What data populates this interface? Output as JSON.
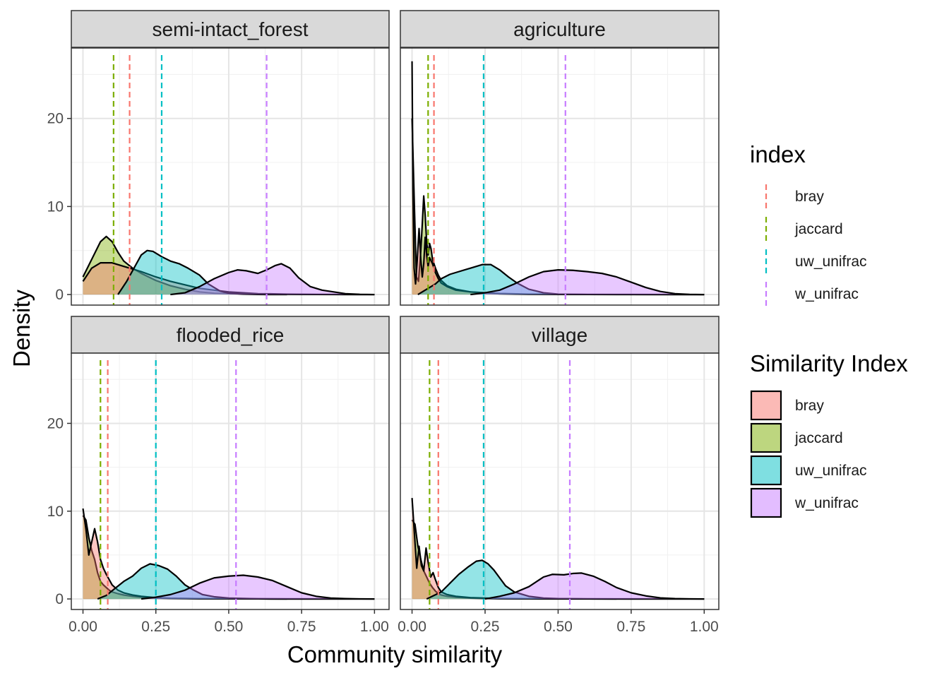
{
  "chart_data": {
    "type": "area",
    "xlabel": "Community similarity",
    "ylabel": "Density",
    "xlim": [
      -0.04,
      1.05
    ],
    "ylim": [
      -1.2,
      28
    ],
    "x_ticks": [
      0,
      0.25,
      0.5,
      0.75,
      1.0
    ],
    "x_tick_labels": [
      "0.00",
      "0.25",
      "0.50",
      "0.75",
      "1.00"
    ],
    "y_ticks": [
      0,
      10,
      20
    ],
    "y_tick_labels": [
      "0",
      "10",
      "20"
    ],
    "grid": true,
    "facet_layout": "2x2",
    "colors": {
      "bray": "#F8766D",
      "jaccard": "#7CAE00",
      "uw_unifrac": "#00BFC4",
      "w_unifrac": "#C77CFF"
    },
    "legends": [
      {
        "title": "index",
        "kind": "dashed-line",
        "placement": "right",
        "entries": [
          "bray",
          "jaccard",
          "uw_unifrac",
          "w_unifrac"
        ]
      },
      {
        "title": "Similarity Index",
        "kind": "filled-box",
        "placement": "right",
        "entries": [
          "bray",
          "jaccard",
          "uw_unifrac",
          "w_unifrac"
        ]
      }
    ],
    "panels": [
      {
        "title": "semi-intact_forest",
        "means": {
          "bray": 0.16,
          "jaccard": 0.105,
          "uw_unifrac": 0.27,
          "w_unifrac": 0.63
        },
        "series": [
          {
            "name": "jaccard",
            "x": [
              0,
              0.03,
              0.06,
              0.08,
              0.1,
              0.12,
              0.14,
              0.17,
              0.2,
              0.25,
              0.3,
              0.35,
              0.4,
              0.45,
              0.5,
              0.6,
              0.7,
              0.8,
              0.9,
              1.0
            ],
            "y": [
              2.0,
              4.0,
              6.0,
              6.6,
              6.0,
              4.8,
              3.8,
              3.0,
              2.4,
              1.6,
              1.0,
              0.6,
              0.3,
              0.15,
              0.1,
              0.05,
              0.02,
              0.01,
              0,
              0
            ]
          },
          {
            "name": "bray",
            "x": [
              0,
              0.03,
              0.06,
              0.1,
              0.14,
              0.2,
              0.25,
              0.3,
              0.35,
              0.4,
              0.45,
              0.5,
              0.55,
              0.6,
              0.7,
              0.8,
              1.0
            ],
            "y": [
              1.5,
              3.0,
              3.6,
              3.6,
              3.2,
              2.6,
              2.0,
              1.5,
              1.1,
              0.7,
              0.5,
              0.3,
              0.2,
              0.1,
              0.05,
              0.02,
              0
            ]
          },
          {
            "name": "uw_unifrac",
            "x": [
              0.12,
              0.15,
              0.18,
              0.2,
              0.22,
              0.24,
              0.27,
              0.3,
              0.33,
              0.36,
              0.4,
              0.43,
              0.47,
              0.5,
              0.55,
              0.6,
              0.7
            ],
            "y": [
              0,
              1.5,
              3.3,
              4.5,
              5.0,
              4.9,
              4.3,
              3.8,
              3.5,
              3.0,
              2.2,
              1.2,
              0.4,
              0.15,
              0.05,
              0.01,
              0
            ]
          },
          {
            "name": "w_unifrac",
            "x": [
              0.3,
              0.35,
              0.4,
              0.45,
              0.5,
              0.53,
              0.56,
              0.6,
              0.63,
              0.66,
              0.68,
              0.71,
              0.74,
              0.78,
              0.82,
              0.86,
              0.9,
              0.95,
              1.0
            ],
            "y": [
              0,
              0.2,
              0.9,
              1.8,
              2.5,
              2.8,
              2.7,
              2.4,
              2.8,
              3.3,
              3.5,
              3.0,
              1.9,
              0.9,
              0.5,
              0.3,
              0.1,
              0.02,
              0
            ]
          }
        ]
      },
      {
        "title": "agriculture",
        "means": {
          "bray": 0.075,
          "jaccard": 0.055,
          "uw_unifrac": 0.245,
          "w_unifrac": 0.525
        },
        "series": [
          {
            "name": "jaccard",
            "x": [
              0,
              0.008,
              0.015,
              0.022,
              0.03,
              0.035,
              0.04,
              0.045,
              0.05,
              0.055,
              0.06,
              0.065,
              0.07,
              0.08,
              0.09,
              0.1,
              0.12,
              0.15,
              0.2,
              0.25,
              0.3,
              0.4,
              0.6,
              1.0
            ],
            "y": [
              20,
              10,
              2,
              1.5,
              5,
              8,
              11.2,
              9,
              6,
              4.5,
              5.8,
              5.2,
              4.0,
              3.0,
              2.2,
              1.6,
              1.0,
              0.6,
              0.3,
              0.15,
              0.08,
              0.03,
              0.01,
              0
            ]
          },
          {
            "name": "bray",
            "x": [
              0,
              0.003,
              0.007,
              0.012,
              0.018,
              0.024,
              0.03,
              0.035,
              0.04,
              0.045,
              0.05,
              0.055,
              0.06,
              0.07,
              0.08,
              0.09,
              0.1,
              0.12,
              0.15,
              0.2,
              0.3,
              0.4,
              0.6,
              1.0
            ],
            "y": [
              26.5,
              12,
              3,
              1.2,
              4,
              7.5,
              4,
              2,
              3.5,
              6.5,
              4.5,
              3.2,
              4.2,
              3.5,
              2.5,
              1.8,
              1.3,
              0.9,
              0.5,
              0.3,
              0.12,
              0.05,
              0.01,
              0
            ]
          },
          {
            "name": "uw_unifrac",
            "x": [
              0.02,
              0.05,
              0.08,
              0.1,
              0.13,
              0.16,
              0.2,
              0.24,
              0.27,
              0.3,
              0.33,
              0.36,
              0.4,
              0.45,
              0.5,
              0.6,
              0.7,
              1.0
            ],
            "y": [
              0,
              0.6,
              1.2,
              1.8,
              2.3,
              2.6,
              3.0,
              3.4,
              3.4,
              2.8,
              2.0,
              1.3,
              0.6,
              0.2,
              0.05,
              0.01,
              0,
              0
            ]
          },
          {
            "name": "w_unifrac",
            "x": [
              0.2,
              0.25,
              0.3,
              0.35,
              0.4,
              0.45,
              0.5,
              0.55,
              0.6,
              0.65,
              0.7,
              0.75,
              0.8,
              0.85,
              0.9,
              0.95,
              1.0
            ],
            "y": [
              0,
              0.2,
              0.5,
              1.2,
              2.0,
              2.6,
              2.8,
              2.75,
              2.6,
              2.4,
              2.0,
              1.4,
              0.8,
              0.35,
              0.1,
              0.02,
              0
            ]
          }
        ]
      },
      {
        "title": "flooded_rice",
        "means": {
          "bray": 0.085,
          "jaccard": 0.06,
          "uw_unifrac": 0.25,
          "w_unifrac": 0.525
        },
        "series": [
          {
            "name": "jaccard",
            "x": [
              0,
              0.01,
              0.02,
              0.03,
              0.04,
              0.05,
              0.06,
              0.07,
              0.08,
              0.09,
              0.1,
              0.12,
              0.14,
              0.17,
              0.2,
              0.25,
              0.3,
              0.4,
              0.6,
              1.0
            ],
            "y": [
              9.5,
              9.0,
              7.0,
              5.5,
              4.5,
              3.0,
              2.0,
              1.6,
              1.3,
              1.0,
              0.8,
              0.6,
              0.45,
              0.3,
              0.2,
              0.1,
              0.05,
              0.02,
              0.01,
              0
            ]
          },
          {
            "name": "bray",
            "x": [
              0,
              0.01,
              0.02,
              0.03,
              0.04,
              0.05,
              0.06,
              0.07,
              0.08,
              0.09,
              0.1,
              0.12,
              0.14,
              0.17,
              0.2,
              0.25,
              0.3,
              0.4,
              0.6,
              1.0
            ],
            "y": [
              10.3,
              8.0,
              5.0,
              6.5,
              8.0,
              6.5,
              4.5,
              3.5,
              2.8,
              2.2,
              1.6,
              1.0,
              0.7,
              0.45,
              0.3,
              0.15,
              0.08,
              0.03,
              0.01,
              0
            ]
          },
          {
            "name": "uw_unifrac",
            "x": [
              0.05,
              0.08,
              0.11,
              0.14,
              0.17,
              0.2,
              0.23,
              0.26,
              0.29,
              0.32,
              0.35,
              0.38,
              0.41,
              0.45,
              0.5,
              0.6,
              0.7
            ],
            "y": [
              0,
              0.4,
              1.2,
              2.0,
              2.6,
              3.5,
              4.0,
              3.8,
              3.4,
              2.6,
              1.6,
              1.0,
              0.5,
              0.25,
              0.1,
              0.02,
              0
            ]
          },
          {
            "name": "w_unifrac",
            "x": [
              0.2,
              0.25,
              0.3,
              0.35,
              0.4,
              0.45,
              0.5,
              0.55,
              0.6,
              0.65,
              0.7,
              0.75,
              0.8,
              0.85,
              0.9,
              0.95,
              1.0
            ],
            "y": [
              0,
              0.2,
              0.5,
              1.0,
              1.8,
              2.4,
              2.6,
              2.7,
              2.5,
              2.1,
              1.4,
              0.7,
              0.3,
              0.1,
              0.04,
              0.01,
              0
            ]
          }
        ]
      },
      {
        "title": "village",
        "means": {
          "bray": 0.09,
          "jaccard": 0.06,
          "uw_unifrac": 0.245,
          "w_unifrac": 0.54
        },
        "series": [
          {
            "name": "jaccard",
            "x": [
              0,
              0.01,
              0.02,
              0.03,
              0.04,
              0.05,
              0.06,
              0.07,
              0.08,
              0.09,
              0.1,
              0.12,
              0.15,
              0.2,
              0.25,
              0.3,
              0.4,
              0.6,
              1.0
            ],
            "y": [
              9.0,
              8.5,
              6.0,
              4.5,
              3.2,
              2.5,
              1.8,
              1.3,
              0.9,
              0.6,
              0.45,
              0.3,
              0.2,
              0.1,
              0.05,
              0.02,
              0.01,
              0,
              0
            ]
          },
          {
            "name": "bray",
            "x": [
              0,
              0.008,
              0.016,
              0.024,
              0.032,
              0.04,
              0.048,
              0.056,
              0.064,
              0.072,
              0.08,
              0.09,
              0.1,
              0.12,
              0.15,
              0.2,
              0.3,
              0.4,
              0.6,
              1.0
            ],
            "y": [
              11.5,
              7.5,
              3.5,
              6.0,
              3.8,
              3.2,
              5.8,
              4.0,
              2.5,
              3.0,
              2.2,
              1.3,
              0.8,
              0.5,
              0.3,
              0.15,
              0.05,
              0.02,
              0.01,
              0
            ]
          },
          {
            "name": "uw_unifrac",
            "x": [
              0.05,
              0.1,
              0.13,
              0.16,
              0.19,
              0.22,
              0.24,
              0.26,
              0.28,
              0.3,
              0.32,
              0.35,
              0.4,
              0.45,
              0.5,
              0.6,
              0.7
            ],
            "y": [
              0,
              0.8,
              1.8,
              2.8,
              3.6,
              4.3,
              4.4,
              4.0,
              3.3,
              2.4,
              1.5,
              0.8,
              0.3,
              0.1,
              0.04,
              0.01,
              0
            ]
          },
          {
            "name": "w_unifrac",
            "x": [
              0.25,
              0.3,
              0.35,
              0.4,
              0.45,
              0.48,
              0.52,
              0.55,
              0.58,
              0.62,
              0.66,
              0.7,
              0.75,
              0.8,
              0.85,
              0.9,
              0.95,
              1.0
            ],
            "y": [
              0,
              0.3,
              0.7,
              1.4,
              2.5,
              2.8,
              2.75,
              2.9,
              2.95,
              2.6,
              2.0,
              1.3,
              0.7,
              0.35,
              0.12,
              0.04,
              0.01,
              0
            ]
          }
        ]
      }
    ]
  }
}
